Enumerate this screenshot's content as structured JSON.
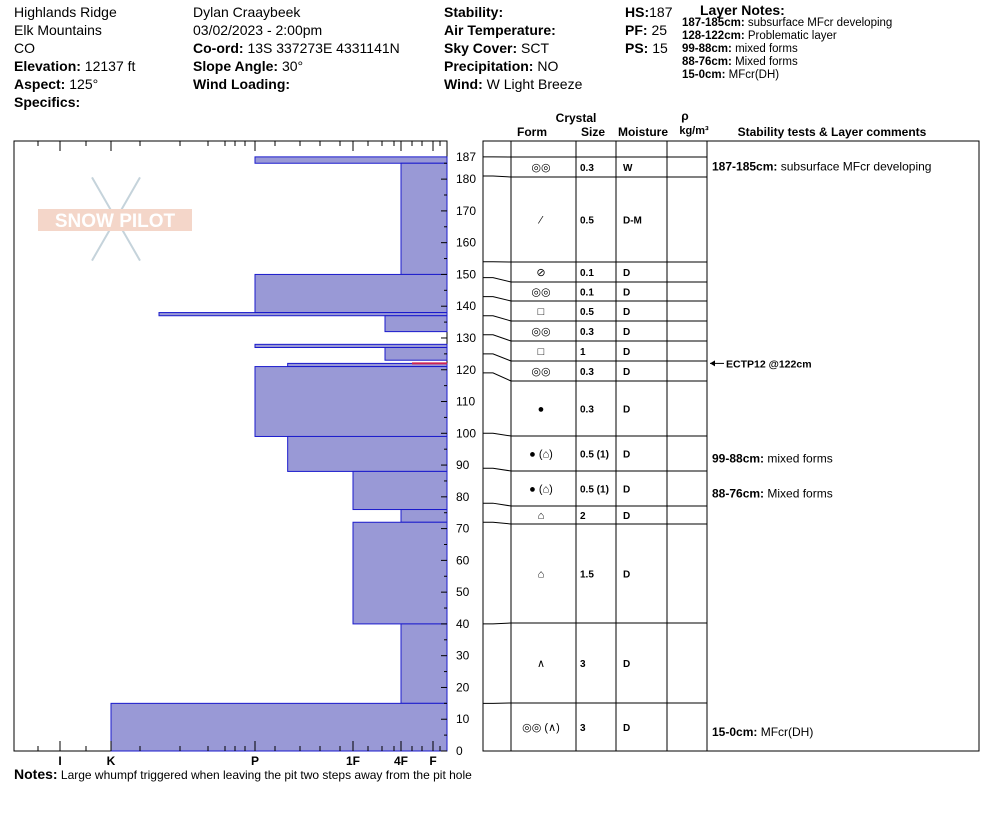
{
  "header": {
    "location": "Highlands Ridge",
    "range": "Elk Mountains",
    "state": "CO",
    "elevation_label": "Elevation:",
    "elevation": "12137 ft",
    "aspect_label": "Aspect:",
    "aspect": "125°",
    "specifics_label": "Specifics:",
    "observer": "Dylan Craaybeek",
    "datetime": "03/02/2023 - 2:00pm",
    "coord_label": "Co-ord:",
    "coord": "13S 337273E 4331141N",
    "slope_label": "Slope Angle:",
    "slope": "30°",
    "wind_loading_label": "Wind Loading:",
    "stability_label": "Stability:",
    "air_temp_label": "Air Temperature:",
    "sky_label": "Sky Cover:",
    "sky": "SCT",
    "precip_label": "Precipitation:",
    "precip": "NO",
    "wind_label": "Wind:",
    "wind": "W Light Breeze",
    "hs_label": "HS:",
    "hs": "187",
    "pf_label": "PF:",
    "pf": "25",
    "ps_label": "PS:",
    "ps": "15"
  },
  "layer_notes": {
    "title": "Layer Notes:",
    "items": [
      {
        "range": "187-185cm:",
        "text": "subsurface MFcr developing"
      },
      {
        "range": "128-122cm:",
        "text": "Problematic layer"
      },
      {
        "range": "99-88cm:",
        "text": "mixed forms"
      },
      {
        "range": "88-76cm:",
        "text": "Mixed forms"
      },
      {
        "range": "15-0cm:",
        "text": "MFcr(DH)"
      }
    ]
  },
  "logo_text": "SNOW PILOT",
  "column_headers": {
    "crystal": "Crystal",
    "form": "Form",
    "size": "Size",
    "moisture": "Moisture",
    "rho": "ρ",
    "density_unit": "kg/m³",
    "comments": "Stability tests & Layer comments"
  },
  "notes_label": "Notes:",
  "notes": "Large whumpf triggered when leaving the pit two steps away from the pit hole",
  "chart_data": {
    "type": "bar",
    "orientation": "horizontal",
    "y_unit": "cm",
    "ylim": [
      0,
      192
    ],
    "y_ticks": [
      0,
      10,
      20,
      30,
      40,
      50,
      60,
      70,
      80,
      90,
      100,
      110,
      120,
      130,
      140,
      150,
      160,
      170,
      180,
      187
    ],
    "hardness_scale": [
      "I",
      "K",
      "P",
      "1F",
      "4F",
      "F"
    ],
    "hardness_profile": [
      {
        "top": 187,
        "bottom": 185,
        "hardness": "P"
      },
      {
        "top": 185,
        "bottom": 150,
        "hardness": "4F"
      },
      {
        "top": 150,
        "bottom": 138,
        "hardness": "P"
      },
      {
        "top": 138,
        "bottom": 137,
        "hardness": "K+"
      },
      {
        "top": 137,
        "bottom": 132,
        "hardness": "4F-"
      },
      {
        "top": 128,
        "bottom": 127,
        "hardness": "P"
      },
      {
        "top": 127,
        "bottom": 123,
        "hardness": "4F-"
      },
      {
        "top": 122,
        "bottom": 121,
        "hardness": "P+"
      },
      {
        "top": 121,
        "bottom": 99,
        "hardness": "P"
      },
      {
        "top": 99,
        "bottom": 88,
        "hardness": "P+"
      },
      {
        "top": 88,
        "bottom": 76,
        "hardness": "1F"
      },
      {
        "top": 76,
        "bottom": 72,
        "hardness": "4F"
      },
      {
        "top": 72,
        "bottom": 40,
        "hardness": "1F"
      },
      {
        "top": 40,
        "bottom": 15,
        "hardness": "4F"
      },
      {
        "top": 15,
        "bottom": 0,
        "hardness": "K"
      }
    ],
    "weak_layer_marker_cm": 122,
    "layers": [
      {
        "top": 187,
        "bottom": 181,
        "form": "◎◎",
        "size": "0.3",
        "moisture": "W"
      },
      {
        "top": 181,
        "bottom": 154,
        "form": "⁄",
        "size": "0.5",
        "moisture": "D-M"
      },
      {
        "top": 154,
        "bottom": 149,
        "form": "⊘",
        "size": "0.1",
        "moisture": "D"
      },
      {
        "top": 149,
        "bottom": 143,
        "form": "◎◎",
        "size": "0.1",
        "moisture": "D"
      },
      {
        "top": 143,
        "bottom": 137,
        "form": "□",
        "size": "0.5",
        "moisture": "D"
      },
      {
        "top": 137,
        "bottom": 131,
        "form": "◎◎",
        "size": "0.3",
        "moisture": "D"
      },
      {
        "top": 131,
        "bottom": 125,
        "form": "□",
        "size": "1",
        "moisture": "D"
      },
      {
        "top": 125,
        "bottom": 119,
        "form": "◎◎",
        "size": "0.3",
        "moisture": "D"
      },
      {
        "top": 119,
        "bottom": 100,
        "form": "●",
        "size": "0.3",
        "moisture": "D"
      },
      {
        "top": 100,
        "bottom": 89,
        "form": "● (⌂)",
        "size": "0.5 (1)",
        "moisture": "D"
      },
      {
        "top": 89,
        "bottom": 78,
        "form": "● (⌂)",
        "size": "0.5 (1)",
        "moisture": "D"
      },
      {
        "top": 78,
        "bottom": 72,
        "form": "⌂",
        "size": "2",
        "moisture": "D"
      },
      {
        "top": 72,
        "bottom": 40,
        "form": "⌂",
        "size": "1.5",
        "moisture": "D"
      },
      {
        "top": 40,
        "bottom": 15,
        "form": "∧",
        "size": "3",
        "moisture": "D"
      },
      {
        "top": 15,
        "bottom": 0,
        "form": "◎◎ (∧)",
        "size": "3",
        "moisture": "D"
      }
    ],
    "stability_tests": [
      {
        "depth_cm": 122,
        "text": "ECTP12 @122cm"
      }
    ],
    "comments": [
      {
        "depth_cm": 184,
        "range": "187-185cm:",
        "text": "subsurface MFcr developing"
      },
      {
        "depth_cm": 92,
        "range": "99-88cm:",
        "text": "mixed forms"
      },
      {
        "depth_cm": 81,
        "range": "88-76cm:",
        "text": "Mixed forms"
      },
      {
        "depth_cm": 6,
        "range": "15-0cm:",
        "text": "MFcr(DH)"
      }
    ],
    "colors": {
      "fill": "#9999d6",
      "stroke": "#1a1acc",
      "marker": "#cc2255"
    }
  }
}
